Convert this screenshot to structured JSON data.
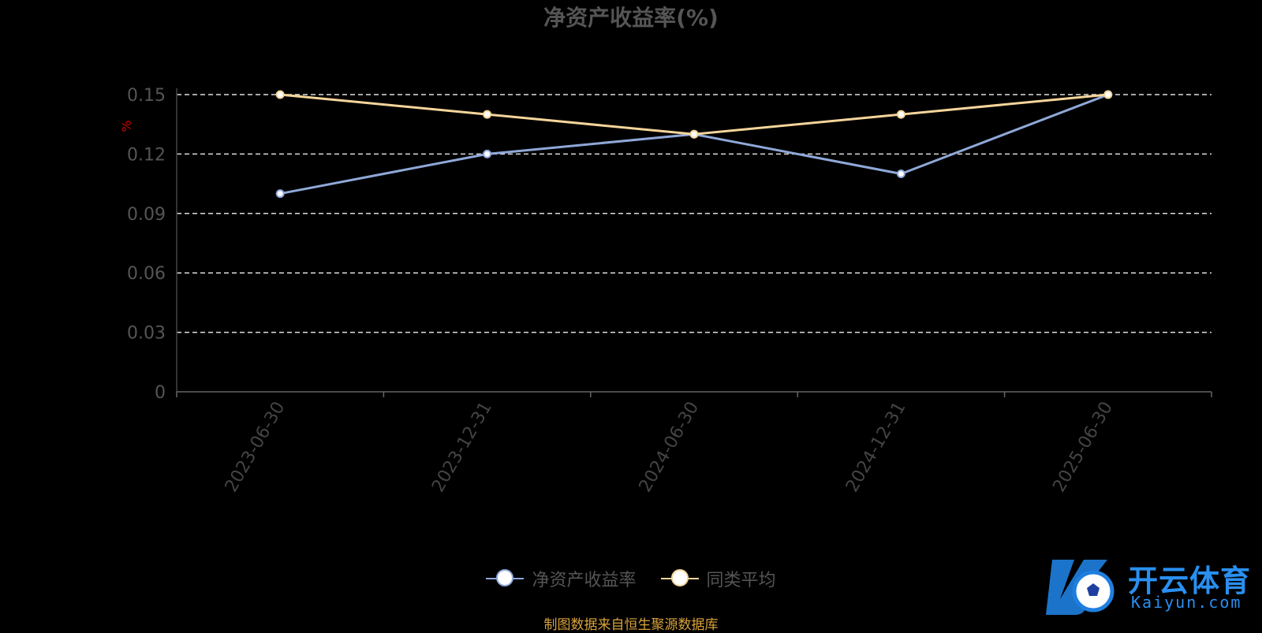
{
  "chart_data": {
    "type": "line",
    "title": "净资产收益率(%)",
    "ylabel": "%",
    "categories": [
      "2023-06-30",
      "2023-12-31",
      "2024-06-30",
      "2024-12-31",
      "2025-06-30"
    ],
    "ylim": [
      0,
      0.15
    ],
    "yticks": [
      "0",
      "0.03",
      "0.06",
      "0.09",
      "0.12",
      "0.15"
    ],
    "grid": true,
    "legend_position": "bottom",
    "series": [
      {
        "name": "净资产收益率",
        "values": [
          0.1,
          0.12,
          0.13,
          0.11,
          0.15
        ],
        "color": "#8fa8d8"
      },
      {
        "name": "同类平均",
        "values": [
          0.15,
          0.14,
          0.13,
          0.14,
          0.15
        ],
        "color": "#f5d59a"
      }
    ]
  },
  "footer": {
    "source": "制图数据来自恒生聚源数据库"
  },
  "watermark": {
    "brand": "开云体育",
    "url": "Kaiyun.com"
  }
}
